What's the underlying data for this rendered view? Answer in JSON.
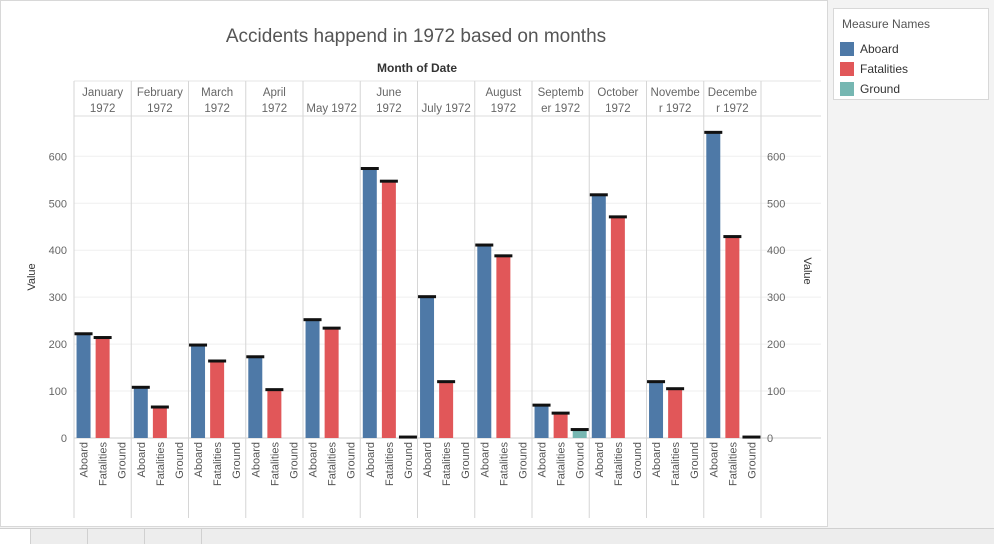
{
  "chart_data": {
    "type": "bar",
    "title": "Accidents happend in 1972 based on months",
    "column_header": "Month of Date",
    "ylabel": "Value",
    "ylim": [
      0,
      700
    ],
    "yticks": [
      0,
      100,
      200,
      300,
      400,
      500,
      600
    ],
    "months": [
      {
        "label_lines": [
          "January",
          "1972"
        ]
      },
      {
        "label_lines": [
          "February",
          "1972"
        ]
      },
      {
        "label_lines": [
          "March",
          "1972"
        ]
      },
      {
        "label_lines": [
          "April",
          "1972"
        ]
      },
      {
        "label_lines": [
          "May 1972"
        ]
      },
      {
        "label_lines": [
          "June",
          "1972"
        ]
      },
      {
        "label_lines": [
          "July 1972"
        ]
      },
      {
        "label_lines": [
          "August",
          "1972"
        ]
      },
      {
        "label_lines": [
          "Septemb",
          "er 1972"
        ]
      },
      {
        "label_lines": [
          "October",
          "1972"
        ]
      },
      {
        "label_lines": [
          "Novembe",
          "r 1972"
        ]
      },
      {
        "label_lines": [
          "Decembe",
          "r 1972"
        ]
      }
    ],
    "measures": [
      "Aboard",
      "Fatalities",
      "Ground"
    ],
    "series": [
      {
        "name": "Aboard",
        "color": "#4e79a7",
        "values": [
          222,
          108,
          198,
          173,
          252,
          574,
          301,
          411,
          70,
          518,
          120,
          651
        ]
      },
      {
        "name": "Fatalities",
        "color": "#e15759",
        "values": [
          214,
          66,
          164,
          103,
          234,
          547,
          120,
          388,
          53,
          471,
          105,
          429
        ]
      },
      {
        "name": "Ground",
        "color": "#76b7b2",
        "values": [
          0,
          0,
          0,
          0,
          0,
          2,
          0,
          0,
          18,
          0,
          0,
          2
        ]
      }
    ],
    "legend_position": "right"
  },
  "legend": {
    "title": "Measure Names",
    "items": [
      {
        "label": "Aboard",
        "color": "#4e79a7"
      },
      {
        "label": "Fatalities",
        "color": "#e15759"
      },
      {
        "label": "Ground",
        "color": "#76b7b2"
      }
    ]
  }
}
